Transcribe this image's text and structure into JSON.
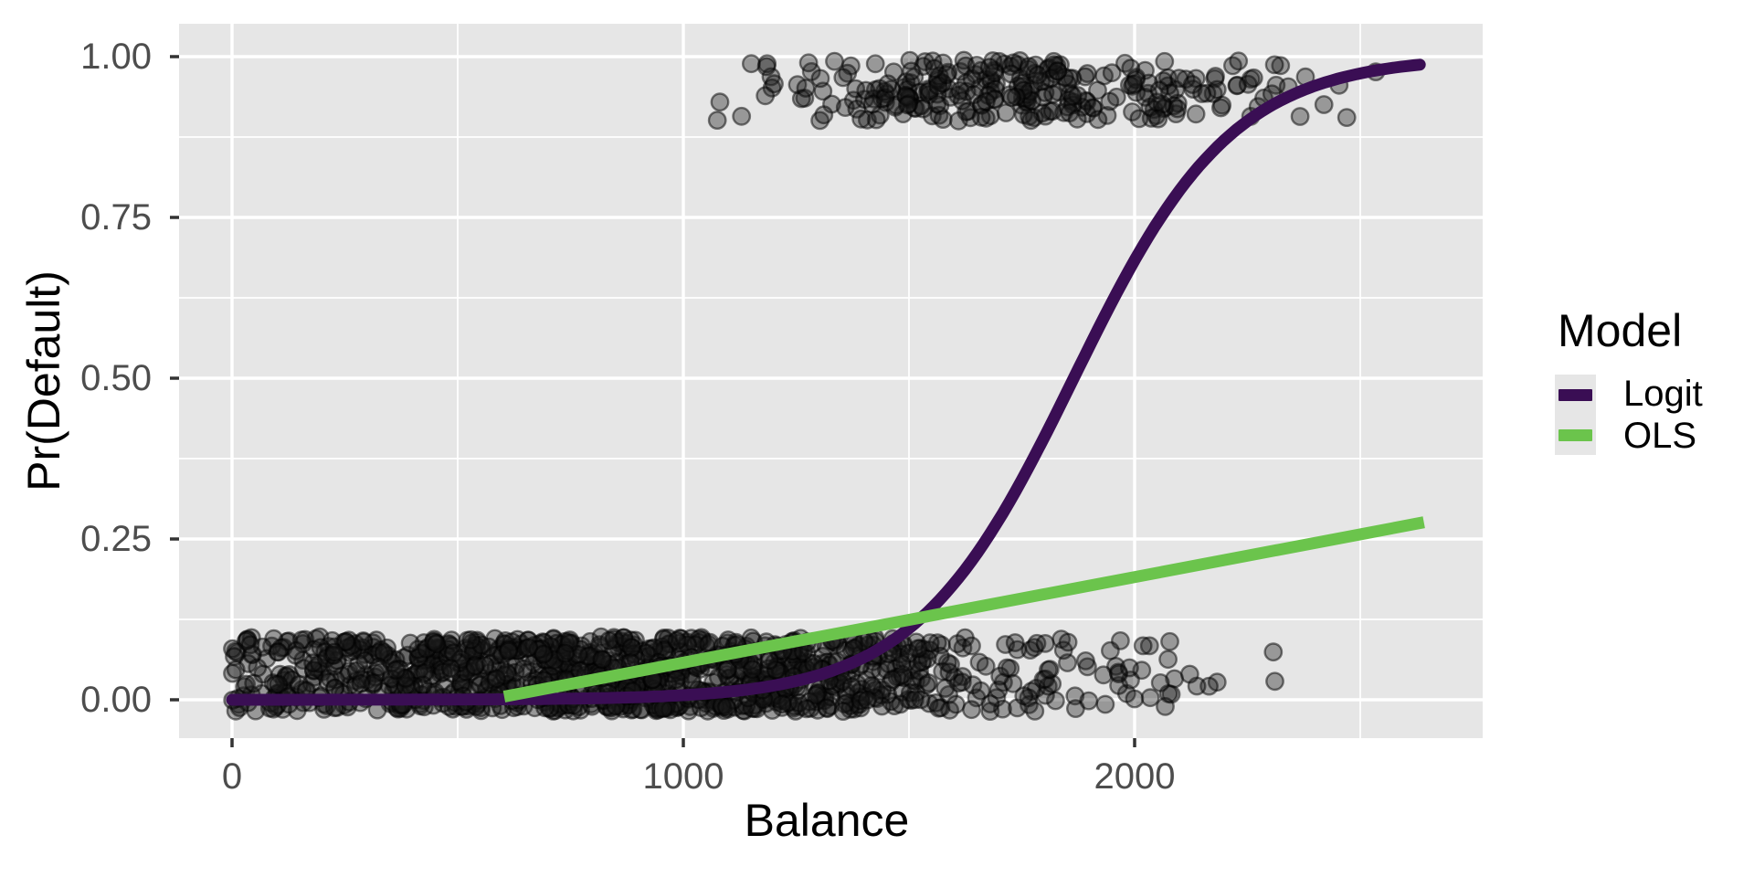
{
  "colors": {
    "panel_bg": "#e6e6e6",
    "grid": "#ffffff",
    "logit": "#3a0e54",
    "ols": "#6bc44c",
    "tick_mark": "#333333",
    "tick_text": "#4d4d4d",
    "title_text": "#000000",
    "point_fill_rgba": "rgba(25,25,25,0.38)",
    "point_stroke_rgba": "rgba(0,0,0,0.5)"
  },
  "chart_data": {
    "type": "scatter",
    "title": "",
    "xlabel": "Balance",
    "ylabel": "Pr(Default)",
    "xlim": [
      -117,
      2771
    ],
    "ylim": [
      -0.06,
      1.05
    ],
    "grid": "on",
    "x_ticks": [
      {
        "value": 0,
        "label": "0"
      },
      {
        "value": 1000,
        "label": "1000"
      },
      {
        "value": 2000,
        "label": "2000"
      }
    ],
    "y_ticks": [
      {
        "value": 0.0,
        "label": "0.00"
      },
      {
        "value": 0.25,
        "label": "0.25"
      },
      {
        "value": 0.5,
        "label": "0.50"
      },
      {
        "value": 0.75,
        "label": "0.75"
      },
      {
        "value": 1.0,
        "label": "1.00"
      }
    ],
    "x_minor": [
      500,
      1500,
      2500
    ],
    "y_minor": [
      0.125,
      0.375,
      0.625,
      0.875
    ],
    "series": [
      {
        "name": "Logit",
        "type": "logistic_curve",
        "midpoint_x": 1865,
        "slope_k": 0.0057,
        "x_range": [
          0,
          2642
        ],
        "color_key": "logit",
        "linewidth": 13
      },
      {
        "name": "OLS",
        "type": "line",
        "endpoints": [
          [
            603,
            0.005
          ],
          [
            2641,
            0.276
          ]
        ],
        "color_key": "ols",
        "linewidth": 13
      }
    ],
    "point_clusters": [
      {
        "name": "non-defaulters",
        "outcome_y": 0,
        "n": 1200,
        "seed": 20,
        "x_dist": "abs-normal",
        "x_mean": 880,
        "x_sd": 520,
        "x_min": 0,
        "x_max": 2440,
        "y_jitter": [
          -0.018,
          0.098
        ]
      },
      {
        "name": "defaulters",
        "outcome_y": 1,
        "n": 285,
        "seed": 77,
        "x_dist": "normal",
        "x_mean": 1745,
        "x_sd": 310,
        "x_min": 1000,
        "x_max": 2650,
        "y_jitter": [
          0.9,
          0.995
        ]
      }
    ],
    "legend": {
      "position": "right",
      "title": "Model",
      "entries": [
        "Logit",
        "OLS"
      ]
    }
  }
}
